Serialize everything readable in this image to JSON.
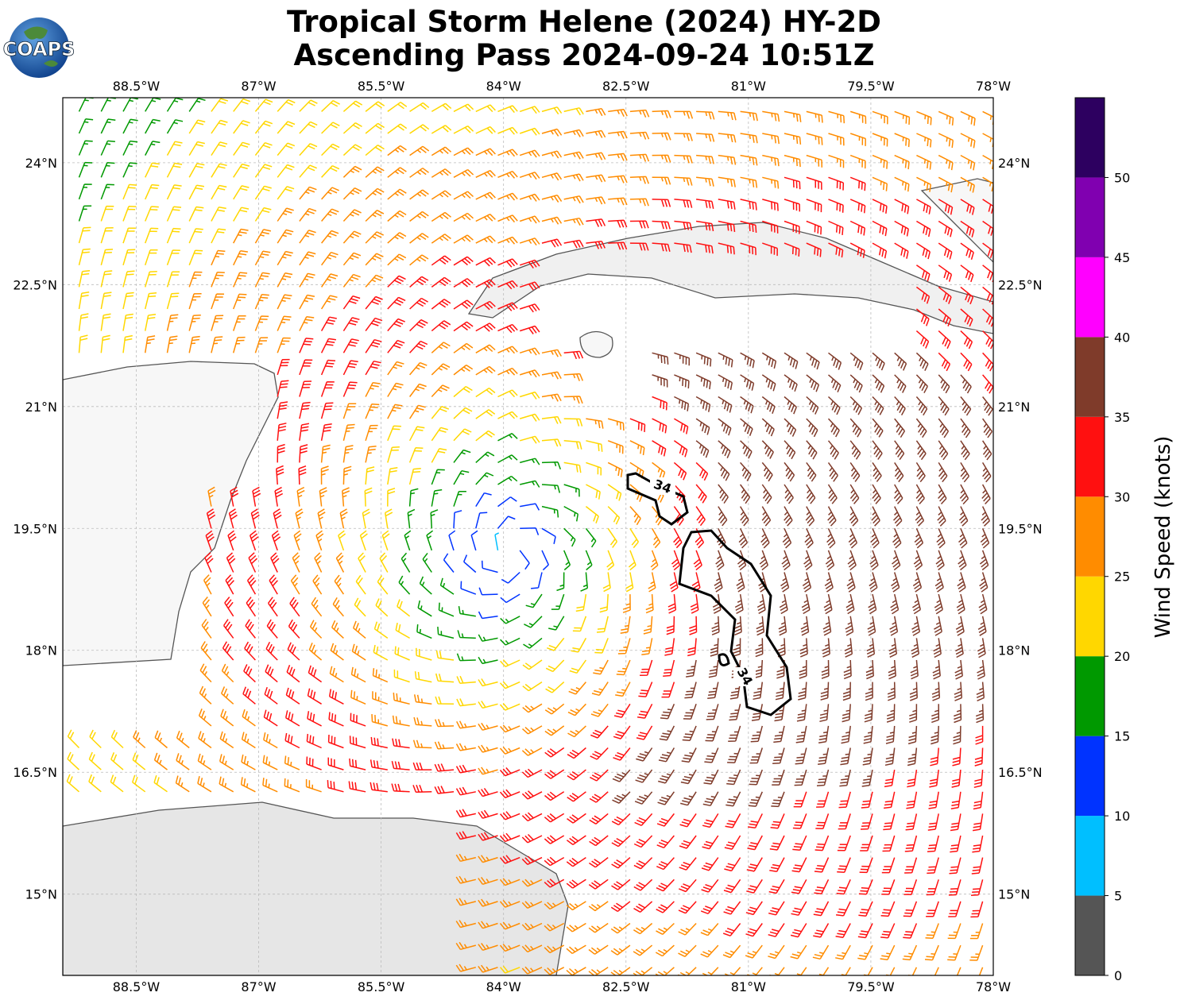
{
  "title": [
    "Tropical Storm Helene (2024) HY-2D",
    "Ascending Pass 2024-09-24 10:51Z"
  ],
  "logo": "COAPS",
  "map": {
    "xlim": [
      -89.4,
      -78
    ],
    "ylim": [
      14,
      24.8
    ],
    "grid": true,
    "xticks": [
      {
        "value": -88.5,
        "label": "88.5°W"
      },
      {
        "value": -87,
        "label": "87°W"
      },
      {
        "value": -85.5,
        "label": "85.5°W"
      },
      {
        "value": -84,
        "label": "84°W"
      },
      {
        "value": -82.5,
        "label": "82.5°W"
      },
      {
        "value": -81,
        "label": "81°W"
      },
      {
        "value": -79.5,
        "label": "79.5°W"
      },
      {
        "value": -78,
        "label": "78°W"
      }
    ],
    "yticks": [
      {
        "value": 15,
        "label": "15°N"
      },
      {
        "value": 16.5,
        "label": "16.5°N"
      },
      {
        "value": 18,
        "label": "18°N"
      },
      {
        "value": 19.5,
        "label": "19.5°N"
      },
      {
        "value": 21,
        "label": "21°N"
      },
      {
        "value": 22.5,
        "label": "22.5°N"
      },
      {
        "value": 24,
        "label": "24°N"
      }
    ],
    "contour_labels": [
      "34",
      "34"
    ]
  },
  "colorbar": {
    "label": "Wind Speed (knots)",
    "lim": [
      0,
      55
    ],
    "bounds": [
      0,
      5,
      10,
      15,
      20,
      25,
      30,
      35,
      40,
      45,
      50,
      55
    ],
    "colors": [
      "#555555",
      "#00bfff",
      "#0033ff",
      "#009900",
      "#ffd700",
      "#ff8c00",
      "#ff1010",
      "#7f3b2a",
      "#ff00ff",
      "#8000b0",
      "#2d0060"
    ],
    "ticks": [
      0,
      5,
      10,
      15,
      20,
      25,
      30,
      35,
      40,
      45,
      50
    ]
  }
}
